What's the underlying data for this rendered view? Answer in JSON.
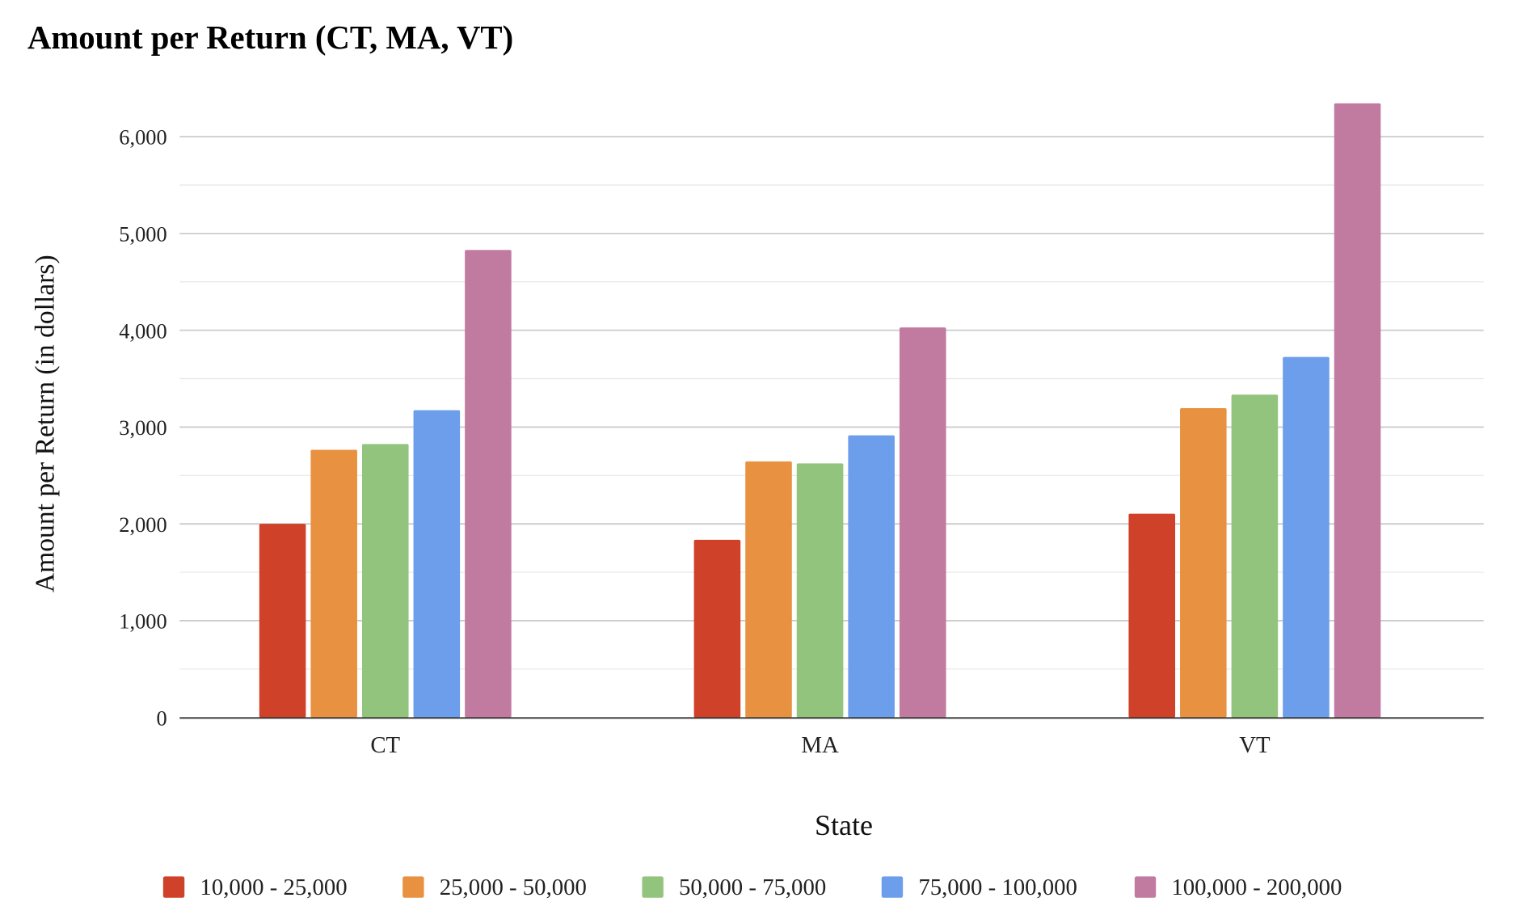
{
  "chart_data": {
    "type": "bar",
    "title": "Amount per Return (CT, MA, VT)",
    "xlabel": "State",
    "ylabel": "Amount per Return (in dollars)",
    "categories": [
      "CT",
      "MA",
      "VT"
    ],
    "ylim": [
      0,
      6000
    ],
    "yticks": [
      0,
      1000,
      2000,
      3000,
      4000,
      5000,
      6000
    ],
    "ytick_labels": [
      "0",
      "1,000",
      "2,000",
      "3,000",
      "4,000",
      "5,000",
      "6,000"
    ],
    "grid": true,
    "legend_position": "bottom",
    "series": [
      {
        "name": "10,000 - 25,000",
        "color": "#cf4128",
        "values": [
          2000,
          1835,
          2105
        ]
      },
      {
        "name": "25,000 - 50,000",
        "color": "#e89241",
        "values": [
          2765,
          2645,
          3195
        ]
      },
      {
        "name": "50,000 - 75,000",
        "color": "#93c47d",
        "values": [
          2825,
          2625,
          3335
        ]
      },
      {
        "name": "75,000 - 100,000",
        "color": "#6d9eeb",
        "values": [
          3175,
          2915,
          3725
        ]
      },
      {
        "name": "100,000 - 200,000",
        "color": "#c27ba0",
        "values": [
          4830,
          4030,
          6345
        ]
      }
    ]
  }
}
